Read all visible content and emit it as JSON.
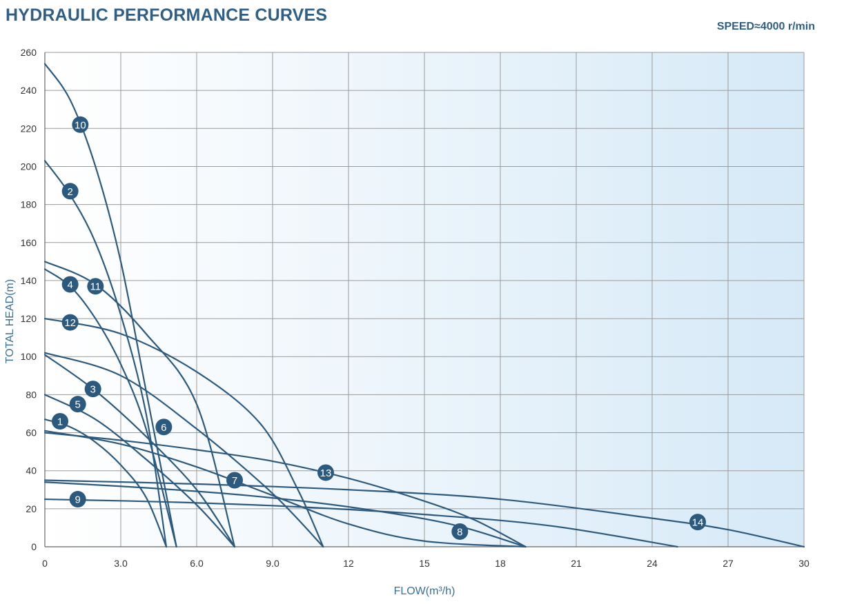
{
  "header": {
    "title": "HYDRAULIC PERFORMANCE CURVES",
    "speed": "SPEED≈4000 r/min"
  },
  "colors": {
    "curve": "#2c5a7f",
    "badge": "#2c5a7f",
    "grid": "#9a9a9a",
    "bg_start": "#ffffff",
    "bg_end": "#d6e9f7",
    "axis_label": "#3b6f96",
    "title": "#2f5f86"
  },
  "chart_data": {
    "type": "line",
    "xlabel": "FLOW(m³/h)",
    "ylabel": "TOTAL HEAD(m)",
    "x_ticks": [
      "0",
      "3.0",
      "6.0",
      "9.0",
      "12",
      "15",
      "18",
      "21",
      "24",
      "27",
      "30"
    ],
    "y_ticks": [
      "0",
      "20",
      "40",
      "60",
      "80",
      "100",
      "120",
      "140",
      "160",
      "180",
      "200",
      "220",
      "240",
      "260"
    ],
    "xlim": [
      0,
      30
    ],
    "ylim": [
      0,
      260
    ],
    "grid": true,
    "series": [
      {
        "name": "1",
        "label_at": [
          0.6,
          66
        ],
        "points": [
          [
            0,
            67
          ],
          [
            1,
            63
          ],
          [
            2,
            55
          ],
          [
            3,
            43
          ],
          [
            4,
            26
          ],
          [
            4.8,
            0
          ]
        ]
      },
      {
        "name": "2",
        "label_at": [
          1.0,
          187
        ],
        "points": [
          [
            0,
            203
          ],
          [
            1,
            185
          ],
          [
            2,
            160
          ],
          [
            3,
            122
          ],
          [
            4,
            70
          ],
          [
            4.8,
            0
          ]
        ]
      },
      {
        "name": "3",
        "label_at": [
          1.9,
          83
        ],
        "points": [
          [
            0,
            101
          ],
          [
            2,
            82
          ],
          [
            4,
            58
          ],
          [
            6,
            30
          ],
          [
            7.5,
            0
          ]
        ]
      },
      {
        "name": "4",
        "label_at": [
          1.0,
          138
        ],
        "points": [
          [
            0,
            146
          ],
          [
            1,
            137
          ],
          [
            2,
            120
          ],
          [
            3,
            96
          ],
          [
            4,
            62
          ],
          [
            5.2,
            0
          ]
        ]
      },
      {
        "name": "5",
        "label_at": [
          1.3,
          75
        ],
        "points": [
          [
            0,
            80
          ],
          [
            2,
            67
          ],
          [
            4,
            46
          ],
          [
            6,
            22
          ],
          [
            7.5,
            0
          ]
        ]
      },
      {
        "name": "6",
        "label_at": [
          4.7,
          63
        ],
        "points": [
          [
            0,
            102
          ],
          [
            3,
            90
          ],
          [
            6,
            62
          ],
          [
            9,
            28
          ],
          [
            11,
            0
          ]
        ]
      },
      {
        "name": "7",
        "label_at": [
          7.5,
          35
        ],
        "points": [
          [
            0,
            61
          ],
          [
            3,
            54
          ],
          [
            6,
            42
          ],
          [
            9,
            27
          ],
          [
            12,
            12
          ],
          [
            15,
            3
          ],
          [
            19,
            0
          ]
        ]
      },
      {
        "name": "8",
        "label_at": [
          16.4,
          8
        ],
        "points": [
          [
            0,
            34
          ],
          [
            4,
            31
          ],
          [
            8,
            27
          ],
          [
            12,
            21
          ],
          [
            16,
            12
          ],
          [
            19,
            0
          ]
        ]
      },
      {
        "name": "9",
        "label_at": [
          1.3,
          25
        ],
        "points": [
          [
            0,
            25
          ],
          [
            5,
            23.5
          ],
          [
            10,
            21
          ],
          [
            15,
            17
          ],
          [
            20,
            11
          ],
          [
            25,
            0
          ]
        ]
      },
      {
        "name": "10",
        "label_at": [
          1.4,
          222
        ],
        "points": [
          [
            0,
            254
          ],
          [
            1,
            235
          ],
          [
            2,
            200
          ],
          [
            3,
            150
          ],
          [
            4,
            82
          ],
          [
            5.2,
            0
          ]
        ]
      },
      {
        "name": "11",
        "label_at": [
          2.0,
          137
        ],
        "points": [
          [
            0,
            150
          ],
          [
            2,
            138
          ],
          [
            4,
            112
          ],
          [
            6,
            75
          ],
          [
            7.5,
            0
          ]
        ]
      },
      {
        "name": "12",
        "label_at": [
          1.0,
          118
        ],
        "points": [
          [
            0,
            120
          ],
          [
            3,
            112
          ],
          [
            6,
            92
          ],
          [
            8.5,
            65
          ],
          [
            10,
            30
          ],
          [
            11,
            0
          ]
        ]
      },
      {
        "name": "13",
        "label_at": [
          11.1,
          39
        ],
        "points": [
          [
            0,
            60
          ],
          [
            3,
            56
          ],
          [
            6,
            51
          ],
          [
            9,
            45
          ],
          [
            12,
            36
          ],
          [
            15,
            24
          ],
          [
            17,
            14
          ],
          [
            19,
            0
          ]
        ]
      },
      {
        "name": "14",
        "label_at": [
          25.8,
          13
        ],
        "points": [
          [
            0,
            35
          ],
          [
            6,
            33
          ],
          [
            12,
            30
          ],
          [
            18,
            25
          ],
          [
            24,
            15
          ],
          [
            27,
            9
          ],
          [
            30,
            0
          ]
        ]
      }
    ]
  }
}
